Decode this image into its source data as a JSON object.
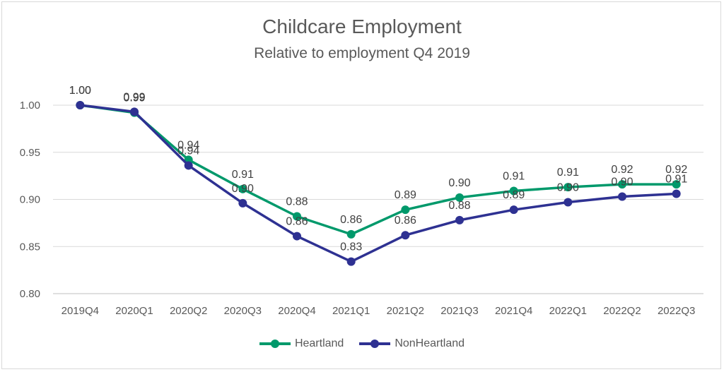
{
  "chart_data": {
    "type": "line",
    "title": "Childcare Employment",
    "subtitle": "Relative to employment Q4 2019",
    "categories": [
      "2019Q4",
      "2020Q1",
      "2020Q2",
      "2020Q3",
      "2020Q4",
      "2021Q1",
      "2021Q2",
      "2021Q3",
      "2021Q4",
      "2022Q1",
      "2022Q2",
      "2022Q3"
    ],
    "ylim": [
      0.8,
      1.0
    ],
    "yticks": [
      "0.80",
      "0.85",
      "0.90",
      "0.95",
      "1.00"
    ],
    "grid": true,
    "legend_position": "bottom",
    "series": [
      {
        "name": "Heartland",
        "color": "#00996b",
        "values": [
          1.0,
          0.992,
          0.942,
          0.911,
          0.882,
          0.863,
          0.889,
          0.902,
          0.909,
          0.913,
          0.916,
          0.916
        ],
        "labels": [
          "1.00",
          "0.99",
          "0.94",
          "0.91",
          "0.88",
          "0.86",
          "0.89",
          "0.90",
          "0.91",
          "0.91",
          "0.92",
          "0.92"
        ]
      },
      {
        "name": "NonHeartland",
        "color": "#2e3192",
        "values": [
          1.0,
          0.993,
          0.936,
          0.896,
          0.861,
          0.834,
          0.862,
          0.878,
          0.889,
          0.897,
          0.903,
          0.906
        ],
        "labels": [
          "1.00",
          "0.99",
          "0.94",
          "0.90",
          "0.86",
          "0.83",
          "0.86",
          "0.88",
          "0.89",
          "0.90",
          "0.90",
          "0.91"
        ]
      }
    ]
  }
}
